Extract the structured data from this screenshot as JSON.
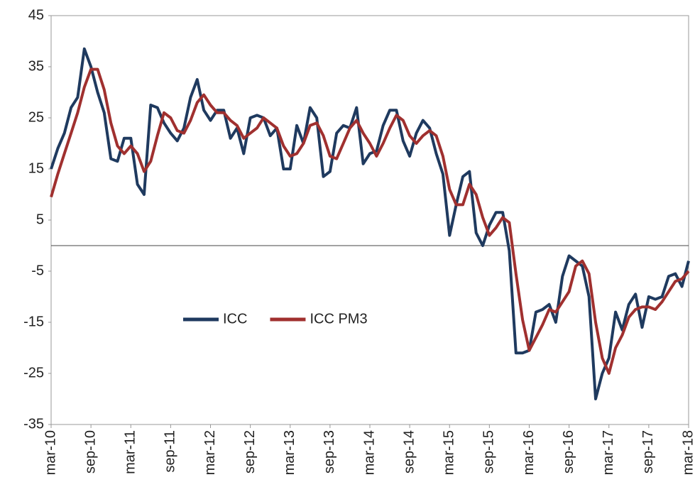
{
  "chart_data": {
    "type": "line",
    "categories": [
      "mar-10",
      null,
      null,
      null,
      null,
      null,
      "sep-10",
      null,
      null,
      null,
      null,
      null,
      "mar-11",
      null,
      null,
      null,
      null,
      null,
      "sep-11",
      null,
      null,
      null,
      null,
      null,
      "mar-12",
      null,
      null,
      null,
      null,
      null,
      "sep-12",
      null,
      null,
      null,
      null,
      null,
      "mar-13",
      null,
      null,
      null,
      null,
      null,
      "sep-13",
      null,
      null,
      null,
      null,
      null,
      "mar-14",
      null,
      null,
      null,
      null,
      null,
      "sep-14",
      null,
      null,
      null,
      null,
      null,
      "mar-15",
      null,
      null,
      null,
      null,
      null,
      "sep-15",
      null,
      null,
      null,
      null,
      null,
      "mar-16",
      null,
      null,
      null,
      null,
      null,
      "sep-16",
      null,
      null,
      null,
      null,
      null,
      "mar-17",
      null,
      null,
      null,
      null,
      null,
      "sep-17",
      null,
      null,
      null,
      null,
      null,
      "mar-18"
    ],
    "series": [
      {
        "name": "ICC",
        "color": "#1f3a5f",
        "values": [
          15,
          19,
          22,
          27,
          29,
          38.5,
          35,
          30,
          26,
          17,
          16.5,
          21,
          21,
          12,
          10,
          27.5,
          27,
          24,
          22,
          20.5,
          23,
          29,
          32.5,
          26.5,
          24.5,
          26.5,
          26.5,
          21,
          23,
          18,
          25,
          25.5,
          25,
          21.5,
          23,
          15,
          15,
          23.5,
          20,
          27,
          25,
          13.5,
          14.5,
          22,
          23.5,
          23,
          27,
          16,
          18,
          18.5,
          23.5,
          26.5,
          26.5,
          20.5,
          17.5,
          22,
          24.5,
          23,
          18,
          14,
          2,
          8,
          13.5,
          14.5,
          2.5,
          0,
          4,
          6.5,
          6.5,
          -1,
          -21,
          -21,
          -20.5,
          -13,
          -12.5,
          -11.5,
          -15,
          -6,
          -2,
          -3,
          -4,
          -10,
          -30,
          -25,
          -22,
          -13,
          -16.5,
          -11.5,
          -9.5,
          -16,
          -10,
          -10.5,
          -10,
          -6,
          -5.5,
          -8,
          -3
        ]
      },
      {
        "name": "ICC PM3",
        "color": "#a0302f",
        "values": [
          9.5,
          14,
          18,
          22,
          26,
          31,
          34.5,
          34.5,
          30.5,
          24,
          19.5,
          18,
          19.5,
          18,
          14.5,
          16.5,
          21.5,
          26,
          25,
          22.5,
          22,
          24.5,
          28,
          29.5,
          27.5,
          26,
          26,
          24.5,
          23.5,
          21,
          22,
          23,
          25,
          24,
          23,
          19.5,
          17.5,
          18,
          20,
          23.5,
          24,
          21.5,
          17.5,
          17,
          20,
          23,
          24.5,
          22,
          20,
          17.5,
          20,
          23,
          25.5,
          24.5,
          21.5,
          20,
          21.5,
          22.5,
          21.5,
          17.5,
          11,
          8,
          8,
          12,
          10,
          5.5,
          2,
          3.5,
          5.5,
          4.5,
          -5.5,
          -14.5,
          -20.5,
          -18,
          -15.5,
          -12.5,
          -13,
          -11,
          -9,
          -4,
          -3,
          -5.5,
          -15,
          -22,
          -25,
          -20,
          -17.5,
          -14,
          -12.5,
          -12,
          -12,
          -12.5,
          -11,
          -9,
          -7,
          -6.5,
          -5
        ]
      }
    ],
    "ylim": [
      -35,
      45
    ],
    "yticks": [
      -35,
      -25,
      -15,
      -5,
      5,
      15,
      25,
      35,
      45
    ],
    "grid": false,
    "legend": "center"
  }
}
